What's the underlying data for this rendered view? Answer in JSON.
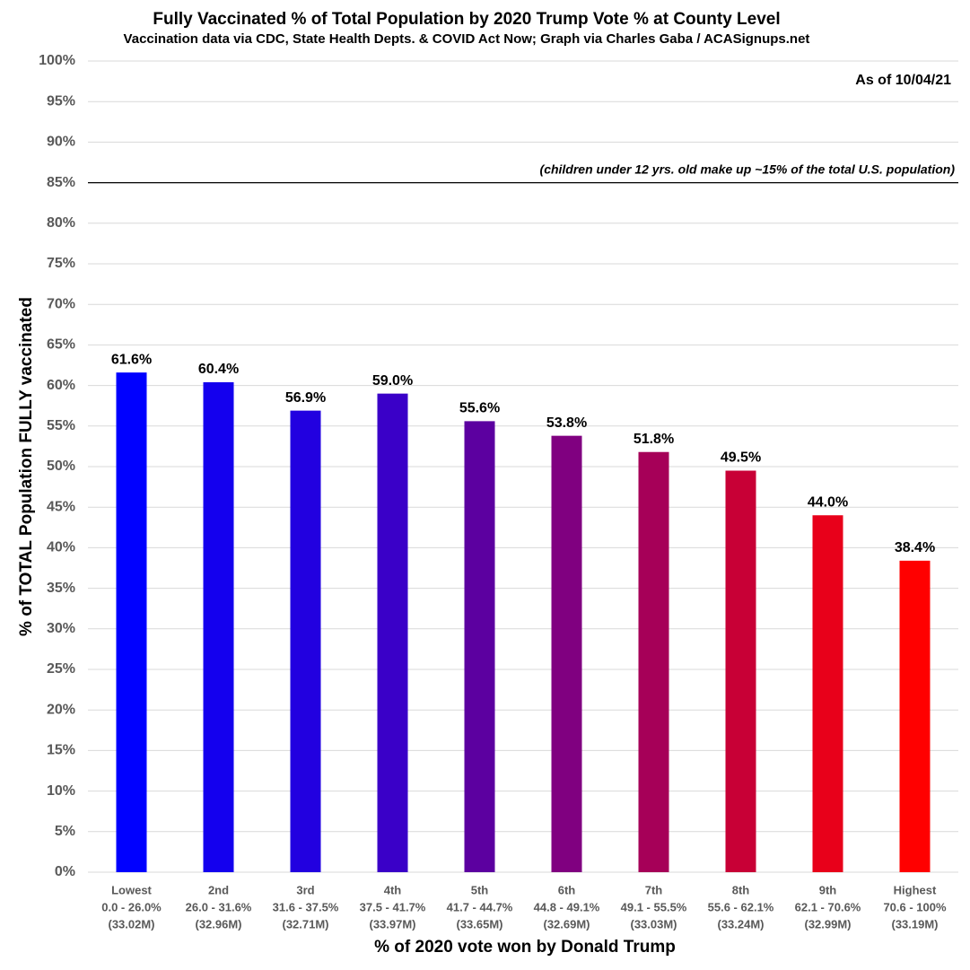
{
  "chart_data": {
    "type": "bar",
    "title": "Fully Vaccinated % of Total Population by 2020 Trump Vote % at County Level",
    "subtitle": "Vaccination data via CDC, State Health Depts. & COVID Act Now; Graph via Charles Gaba / ACASignups.net",
    "annotation": "As of 10/04/21",
    "reference_line": {
      "value": 85,
      "label": "(children under 12 yrs. old make up ~15% of the total U.S. population)"
    },
    "x_label": "% of 2020 vote won by Donald Trump",
    "y_label": "% of TOTAL Population FULLY vaccinated",
    "categories": [
      [
        "Lowest",
        "0.0 - 26.0%",
        "(33.02M)"
      ],
      [
        "2nd",
        "26.0 - 31.6%",
        "(32.96M)"
      ],
      [
        "3rd",
        "31.6 - 37.5%",
        "(32.71M)"
      ],
      [
        "4th",
        "37.5 - 41.7%",
        "(33.97M)"
      ],
      [
        "5th",
        "41.7 - 44.7%",
        "(33.65M)"
      ],
      [
        "6th",
        "44.8 - 49.1%",
        "(32.69M)"
      ],
      [
        "7th",
        "49.1 - 55.5%",
        "(33.03M)"
      ],
      [
        "8th",
        "55.6 - 62.1%",
        "(33.24M)"
      ],
      [
        "9th",
        "62.1 - 70.6%",
        "(32.99M)"
      ],
      [
        "Highest",
        "70.6 - 100%",
        "(33.19M)"
      ]
    ],
    "values": [
      61.6,
      60.4,
      56.9,
      59.0,
      55.6,
      53.8,
      51.8,
      49.5,
      44.0,
      38.4
    ],
    "value_labels": [
      "61.6%",
      "60.4%",
      "56.9%",
      "59.0%",
      "55.6%",
      "53.8%",
      "51.8%",
      "49.5%",
      "44.0%",
      "38.4%"
    ],
    "colors": [
      "#0000ff",
      "#1400ee",
      "#2200e0",
      "#3a00c8",
      "#5c00a0",
      "#800080",
      "#a60058",
      "#c80036",
      "#e8001a",
      "#ff0000"
    ],
    "ylim": [
      0,
      100
    ],
    "yticks": [
      {
        "value": 0,
        "label": "0%"
      },
      {
        "value": 5,
        "label": "5%"
      },
      {
        "value": 10,
        "label": "10%"
      },
      {
        "value": 15,
        "label": "15%"
      },
      {
        "value": 20,
        "label": "20%"
      },
      {
        "value": 25,
        "label": "25%"
      },
      {
        "value": 30,
        "label": "30%"
      },
      {
        "value": 35,
        "label": "35%"
      },
      {
        "value": 40,
        "label": "40%"
      },
      {
        "value": 45,
        "label": "45%"
      },
      {
        "value": 50,
        "label": "50%"
      },
      {
        "value": 55,
        "label": "55%"
      },
      {
        "value": 60,
        "label": "60%"
      },
      {
        "value": 65,
        "label": "65%"
      },
      {
        "value": 70,
        "label": "70%"
      },
      {
        "value": 75,
        "label": "75%"
      },
      {
        "value": 80,
        "label": "80%"
      },
      {
        "value": 85,
        "label": "85%"
      },
      {
        "value": 90,
        "label": "90%"
      },
      {
        "value": 95,
        "label": "95%"
      },
      {
        "value": 100,
        "label": "100%"
      }
    ],
    "grid": true
  }
}
